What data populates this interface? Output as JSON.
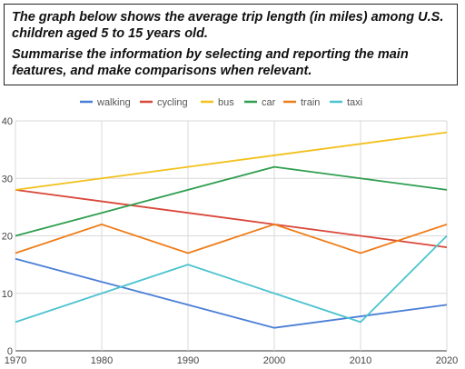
{
  "prompt": {
    "line1": "The graph below shows the average trip length (in miles) among U.S. children aged 5 to 15 years old.",
    "line2": "Summarise the information by selecting and reporting the main features, and make comparisons when relevant."
  },
  "chart_data": {
    "type": "line",
    "title": "",
    "xlabel": "",
    "ylabel": "",
    "x": [
      1970,
      1980,
      1990,
      2000,
      2010,
      2020
    ],
    "xlim": [
      1970,
      2020
    ],
    "ylim": [
      0,
      40
    ],
    "yticks": [
      0,
      10,
      20,
      30,
      40
    ],
    "grid": true,
    "legend_position": "top",
    "series": [
      {
        "name": "walking",
        "color": "#4a7fd6",
        "values": [
          16,
          12,
          8,
          4,
          6,
          8
        ]
      },
      {
        "name": "cycling",
        "color": "#d9483b",
        "values": [
          28,
          26,
          24,
          22,
          20,
          18
        ]
      },
      {
        "name": "bus",
        "color": "#f2c11c",
        "values": [
          28,
          30,
          32,
          34,
          36,
          38
        ]
      },
      {
        "name": "car",
        "color": "#2f9e4f",
        "values": [
          20,
          24,
          28,
          32,
          30,
          28
        ]
      },
      {
        "name": "train",
        "color": "#ef7d1a",
        "values": [
          17,
          22,
          17,
          22,
          17,
          22
        ]
      },
      {
        "name": "taxi",
        "color": "#4cc3cf",
        "values": [
          5,
          10,
          15,
          10,
          5,
          20
        ]
      }
    ]
  }
}
